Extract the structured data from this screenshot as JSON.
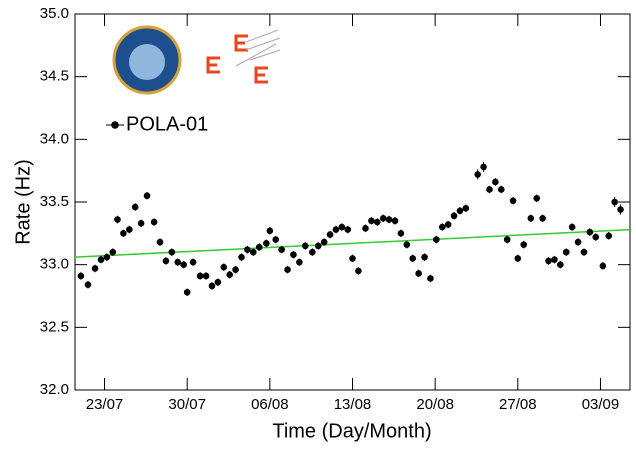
{
  "chart_data": {
    "type": "scatter",
    "y_label": "Rate (Hz)",
    "x_label": "Time (Day/Month)",
    "xlim": [
      201.5,
      248.5
    ],
    "ylim": [
      32.0,
      35.0
    ],
    "yticks": [
      {
        "value": 32,
        "label": "32.0"
      },
      {
        "value": 32.5,
        "label": "32.5"
      },
      {
        "value": 33,
        "label": "33.0"
      },
      {
        "value": 33.5,
        "label": "33.5"
      },
      {
        "value": 34,
        "label": "34.0"
      },
      {
        "value": 34.5,
        "label": "34.5"
      },
      {
        "value": 35,
        "label": "35.0"
      }
    ],
    "xticks": [
      {
        "value": 204,
        "label": "23/07"
      },
      {
        "value": 211,
        "label": "30/07"
      },
      {
        "value": 218,
        "label": "06/08"
      },
      {
        "value": 225,
        "label": "13/08"
      },
      {
        "value": 232,
        "label": "20/08"
      },
      {
        "value": 239,
        "label": "27/08"
      },
      {
        "value": 246,
        "label": "03/09"
      }
    ],
    "series": [
      {
        "name": "POLA-01",
        "color": "#000000",
        "x": [
          202.0,
          202.6,
          203.2,
          203.7,
          204.2,
          204.7,
          205.1,
          205.6,
          206.1,
          206.6,
          207.1,
          207.6,
          208.2,
          208.7,
          209.2,
          209.7,
          210.2,
          210.7,
          211.0,
          211.5,
          212.1,
          212.6,
          213.1,
          213.6,
          214.1,
          214.6,
          215.1,
          215.6,
          216.1,
          216.6,
          217.1,
          217.7,
          218.0,
          218.5,
          219.0,
          219.5,
          220.0,
          220.5,
          221.0,
          221.6,
          222.1,
          222.6,
          223.1,
          223.6,
          224.1,
          224.6,
          225.0,
          225.5,
          226.1,
          226.6,
          227.1,
          227.6,
          228.1,
          228.6,
          229.1,
          229.6,
          230.1,
          230.6,
          231.1,
          231.6,
          232.1,
          232.6,
          233.1,
          233.6,
          234.1,
          234.6,
          235.6,
          236.1,
          236.6,
          237.1,
          237.6,
          238.1,
          238.6,
          239.0,
          239.5,
          240.1,
          240.6,
          241.1,
          241.6,
          242.1,
          242.6,
          243.1,
          243.6,
          244.1,
          244.6,
          245.1,
          245.6,
          246.2,
          246.7,
          247.2,
          247.7
        ],
        "values": [
          32.91,
          32.84,
          32.97,
          33.04,
          33.06,
          33.1,
          33.36,
          33.25,
          33.28,
          33.46,
          33.33,
          33.55,
          33.34,
          33.18,
          33.03,
          33.1,
          33.02,
          33.0,
          32.78,
          33.02,
          32.91,
          32.91,
          32.83,
          32.86,
          32.98,
          32.92,
          32.96,
          33.06,
          33.12,
          33.1,
          33.14,
          33.17,
          33.27,
          33.2,
          33.12,
          32.96,
          33.08,
          33.02,
          33.15,
          33.1,
          33.15,
          33.18,
          33.24,
          33.28,
          33.3,
          33.28,
          33.05,
          32.95,
          33.29,
          33.35,
          33.34,
          33.37,
          33.36,
          33.35,
          33.25,
          33.16,
          33.05,
          32.93,
          33.06,
          32.89,
          33.2,
          33.3,
          33.32,
          33.39,
          33.43,
          33.45,
          33.72,
          33.78,
          33.6,
          33.66,
          33.6,
          33.2,
          33.51,
          33.05,
          33.16,
          33.37,
          33.53,
          33.37,
          33.03,
          33.04,
          33.0,
          33.1,
          33.3,
          33.18,
          33.1,
          33.26,
          33.22,
          32.99,
          33.23,
          33.5,
          33.44
        ],
        "errors": [
          0.03,
          0.03,
          0.03,
          0.03,
          0.03,
          0.03,
          0.03,
          0.03,
          0.03,
          0.03,
          0.03,
          0.03,
          0.03,
          0.03,
          0.03,
          0.03,
          0.03,
          0.03,
          0.03,
          0.03,
          0.03,
          0.03,
          0.03,
          0.03,
          0.03,
          0.03,
          0.03,
          0.03,
          0.03,
          0.03,
          0.03,
          0.03,
          0.03,
          0.03,
          0.03,
          0.03,
          0.03,
          0.03,
          0.03,
          0.03,
          0.03,
          0.03,
          0.03,
          0.03,
          0.03,
          0.03,
          0.03,
          0.03,
          0.03,
          0.03,
          0.03,
          0.03,
          0.03,
          0.03,
          0.03,
          0.03,
          0.03,
          0.03,
          0.03,
          0.03,
          0.03,
          0.03,
          0.03,
          0.03,
          0.03,
          0.03,
          0.04,
          0.04,
          0.03,
          0.03,
          0.03,
          0.03,
          0.03,
          0.03,
          0.03,
          0.03,
          0.03,
          0.03,
          0.03,
          0.03,
          0.03,
          0.03,
          0.03,
          0.03,
          0.03,
          0.03,
          0.03,
          0.03,
          0.03,
          0.04,
          0.04
        ]
      }
    ],
    "fit": {
      "color": "#33cc33",
      "x": [
        201.5,
        248.5
      ],
      "values": [
        33.06,
        33.28
      ]
    }
  }
}
